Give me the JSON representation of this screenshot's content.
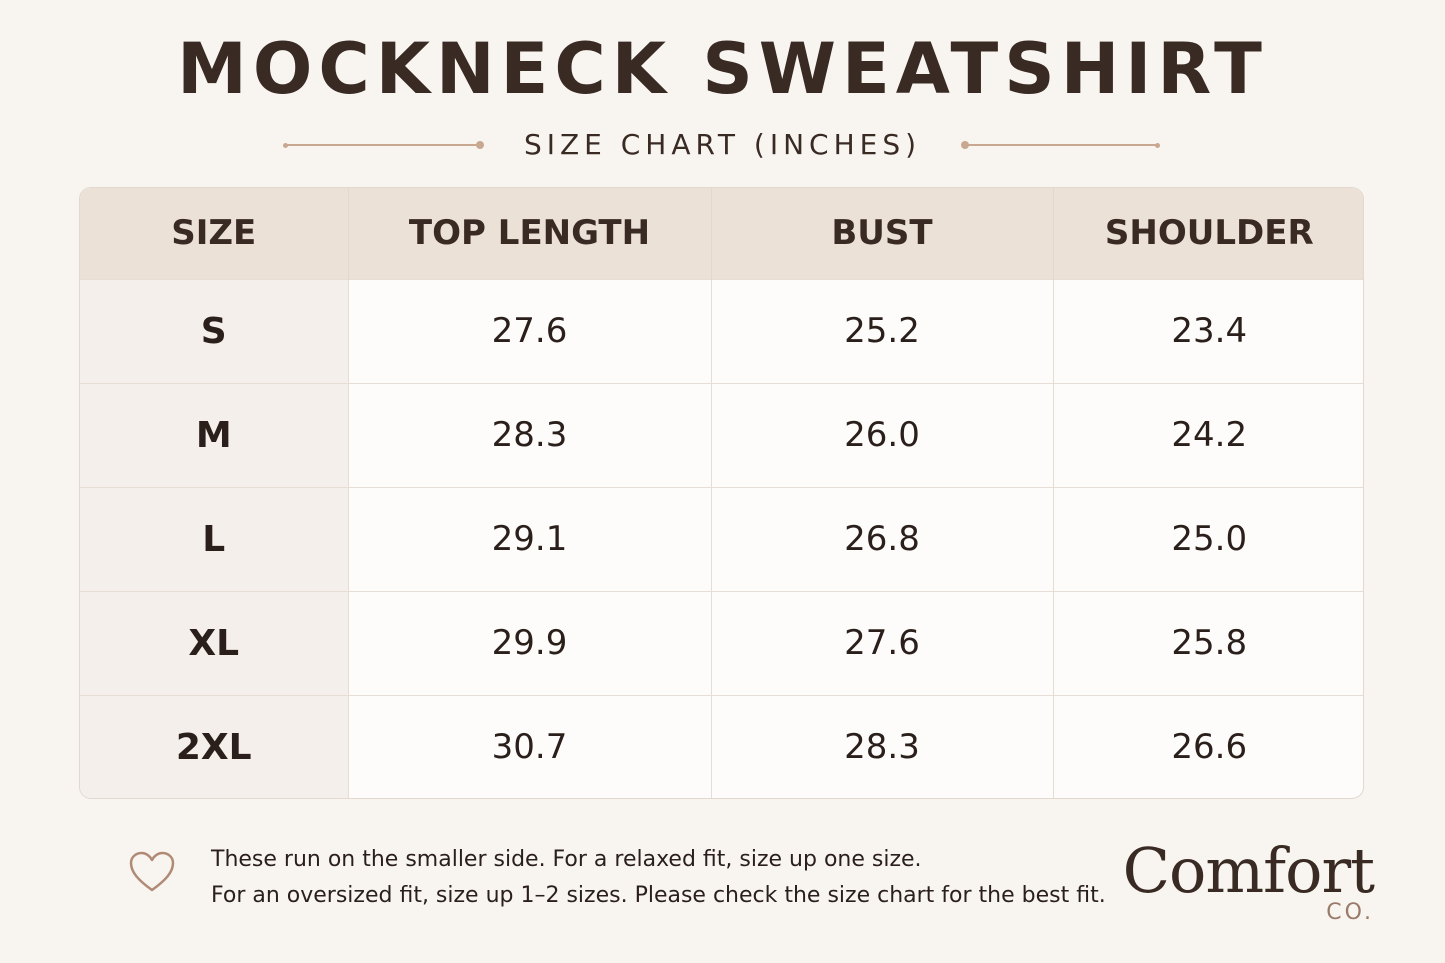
{
  "header": {
    "title": "MOCKNECK SWEATSHIRT",
    "subtitle": "SIZE CHART (INCHES)"
  },
  "table": {
    "columns": [
      "SIZE",
      "TOP LENGTH",
      "BUST",
      "SHOULDER"
    ],
    "rows": [
      [
        "S",
        "27.6",
        "25.2",
        "23.4"
      ],
      [
        "M",
        "28.3",
        "26.0",
        "24.2"
      ],
      [
        "L",
        "29.1",
        "26.8",
        "25.0"
      ],
      [
        "XL",
        "29.9",
        "27.6",
        "25.8"
      ],
      [
        "2XL",
        "30.7",
        "28.3",
        "26.6"
      ]
    ]
  },
  "footer": {
    "icon": "heart-icon",
    "line1": "These run on the smaller side. For a relaxed fit, size up one size.",
    "line2": "For an oversized fit, size up 1–2 sizes. Please check the size chart for the best fit."
  },
  "brand": {
    "name": "Comfort",
    "sub": "CO."
  },
  "colors": {
    "background": "#f8f5f1",
    "header_row": "#ece1d7",
    "accent_rule": "#c9a891",
    "text": "#3a2a24"
  }
}
